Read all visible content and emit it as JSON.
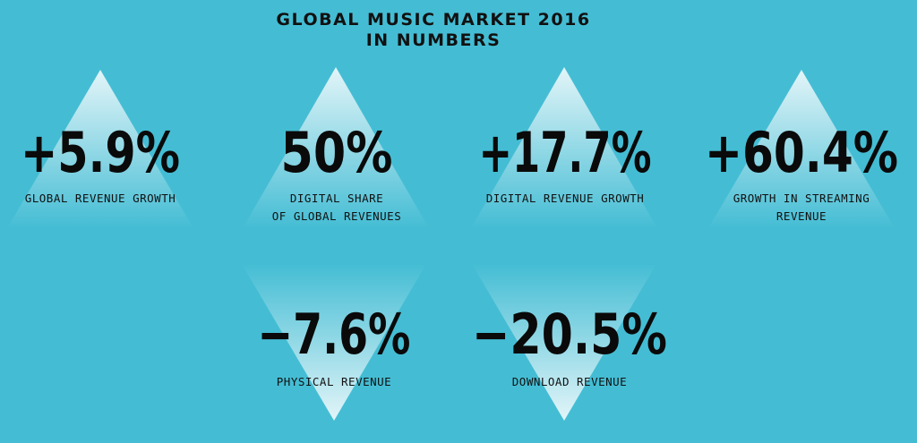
{
  "header": {
    "title": [
      "GLOBAL MUSIC MARKET 2016",
      "IN NUMBERS"
    ]
  },
  "stats": [
    {
      "value": "+5.9%",
      "caption": [
        "GLOBAL REVENUE GROWTH"
      ]
    },
    {
      "value": "50%",
      "caption": [
        "DIGITAL SHARE",
        "OF GLOBAL REVENUES"
      ]
    },
    {
      "value": "+17.7%",
      "caption": [
        "DIGITAL REVENUE GROWTH"
      ]
    },
    {
      "value": "+60.4%",
      "caption": [
        "GROWTH IN STREAMING",
        "REVENUE"
      ]
    },
    {
      "value": "−7.6%",
      "caption": [
        "PHYSICAL REVENUE"
      ]
    },
    {
      "value": "−20.5%",
      "caption": [
        "DOWNLOAD REVENUE"
      ]
    }
  ]
}
